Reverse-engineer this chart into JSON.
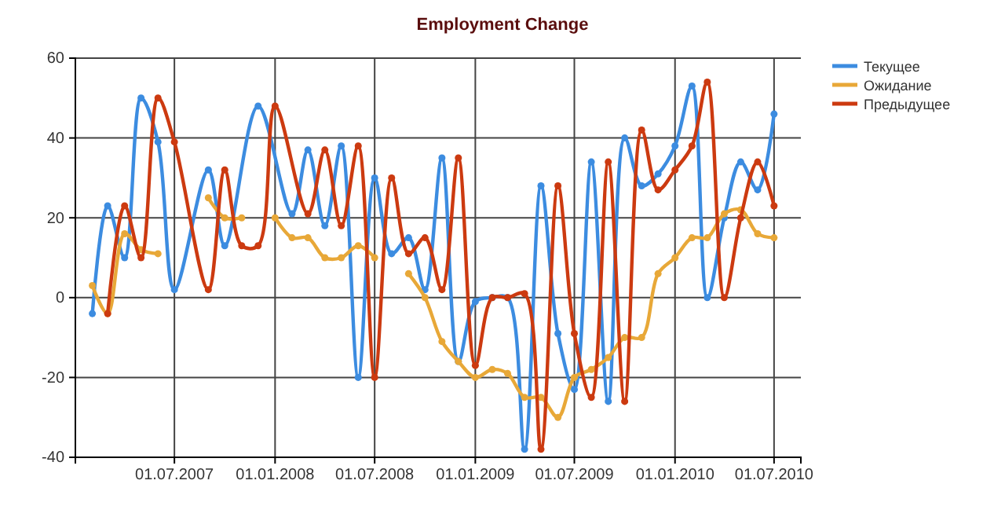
{
  "chart_data": {
    "type": "line",
    "title": "Employment Change",
    "xlim": [
      "2007-01-01",
      "2010-08-19"
    ],
    "xticks": [
      {
        "value": "2007-07-01",
        "label": "01.07.2007"
      },
      {
        "value": "2008-01-01",
        "label": "01.01.2008"
      },
      {
        "value": "2008-07-01",
        "label": "01.07.2008"
      },
      {
        "value": "2009-01-01",
        "label": "01.01.2009"
      },
      {
        "value": "2009-07-01",
        "label": "01.07.2009"
      },
      {
        "value": "2010-01-01",
        "label": "01.01.2010"
      },
      {
        "value": "2010-07-01",
        "label": "01.07.2010"
      }
    ],
    "ylim": [
      -40,
      60
    ],
    "yticks": [
      -40,
      -20,
      0,
      20,
      40,
      60
    ],
    "grid": true,
    "legend": "top right",
    "marker": "circle",
    "line_style": "solid",
    "series": [
      {
        "name": "Текущее",
        "color": "#3c8ce0",
        "x": [
          "2007-02",
          "2007-03",
          "2007-04",
          "2007-05",
          "2007-06",
          "2007-07",
          "2007-09",
          "2007-10",
          "2007-12",
          "2008-02",
          "2008-03",
          "2008-04",
          "2008-05",
          "2008-06",
          "2008-07",
          "2008-08",
          "2008-09",
          "2008-10",
          "2008-11",
          "2008-12",
          "2009-01",
          "2009-02",
          "2009-03",
          "2009-04",
          "2009-05",
          "2009-06",
          "2009-07",
          "2009-08",
          "2009-09",
          "2009-10",
          "2009-11",
          "2009-12",
          "2010-01",
          "2010-02",
          "2010-03",
          "2010-04",
          "2010-05",
          "2010-06",
          "2010-07"
        ],
        "values": [
          -4,
          23,
          10,
          50,
          39,
          2,
          32,
          13,
          48,
          21,
          37,
          18,
          38,
          -20,
          30,
          11,
          15,
          2,
          35,
          -16,
          -1,
          0,
          0,
          -38,
          28,
          -9,
          -23,
          34,
          -26,
          40,
          28,
          31,
          38,
          53,
          0,
          20,
          34,
          27,
          46
        ]
      },
      {
        "name": "Ожидание",
        "color": "#e8a838",
        "x": [
          "2007-02",
          "2007-03",
          "2007-04",
          "2007-05",
          "2007-06",
          "2007-07",
          "2007-08",
          "2007-09",
          "2007-10",
          "2007-11",
          "2007-12",
          "2008-01",
          "2008-02",
          "2008-03",
          "2008-04",
          "2008-05",
          "2008-06",
          "2008-07",
          "2008-08",
          "2008-09",
          "2008-10",
          "2008-11",
          "2008-12",
          "2009-01",
          "2009-02",
          "2009-03",
          "2009-04",
          "2009-05",
          "2009-06",
          "2009-07",
          "2009-08",
          "2009-09",
          "2009-10",
          "2009-11",
          "2009-12",
          "2010-01",
          "2010-02",
          "2010-03",
          "2010-04",
          "2010-05",
          "2010-06",
          "2010-07"
        ],
        "values": [
          3,
          -4,
          16,
          12,
          11,
          null,
          null,
          25,
          20,
          20,
          null,
          20,
          15,
          15,
          10,
          10,
          13,
          10,
          null,
          6,
          0,
          -11,
          -16,
          -20,
          -18,
          -19,
          -25,
          -25,
          -30,
          -20,
          -18,
          -15,
          -10,
          -10,
          6,
          10,
          15,
          15,
          21,
          22,
          16,
          15
        ]
      },
      {
        "name": "Предыдущее",
        "color": "#cc3a10",
        "x": [
          "2007-03",
          "2007-04",
          "2007-05",
          "2007-06",
          "2007-07",
          "2007-09",
          "2007-10",
          "2007-11",
          "2007-12",
          "2008-01",
          "2008-03",
          "2008-04",
          "2008-05",
          "2008-06",
          "2008-07",
          "2008-08",
          "2008-09",
          "2008-10",
          "2008-11",
          "2008-12",
          "2009-01",
          "2009-02",
          "2009-03",
          "2009-04",
          "2009-05",
          "2009-06",
          "2009-07",
          "2009-08",
          "2009-09",
          "2009-10",
          "2009-11",
          "2009-12",
          "2010-01",
          "2010-02",
          "2010-03",
          "2010-04",
          "2010-05",
          "2010-06",
          "2010-07"
        ],
        "values": [
          -4,
          23,
          10,
          50,
          39,
          2,
          32,
          13,
          13,
          48,
          21,
          37,
          18,
          38,
          -20,
          30,
          11,
          15,
          2,
          35,
          -17,
          0,
          0,
          1,
          -38,
          28,
          -9,
          -25,
          34,
          -26,
          42,
          27,
          32,
          38,
          54,
          0,
          20,
          34,
          23
        ]
      }
    ]
  }
}
